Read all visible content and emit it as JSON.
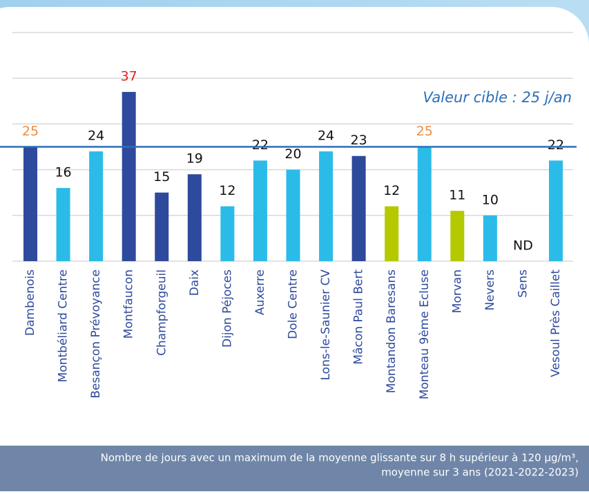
{
  "chart_data": {
    "type": "bar",
    "categories": [
      "Dambenois",
      "Montbéliard Centre",
      "Besançon Prévoyance",
      "Montfaucon",
      "Champforgeuil",
      "Daix",
      "Dijon Péjoces",
      "Auxerre",
      "Dole Centre",
      "Lons-le-Saunier CV",
      "Mâcon Paul Bert",
      "Montandon Baresans",
      "Monteau 9ème Ecluse",
      "Morvan",
      "Nevers",
      "Sens",
      "Vesoul Près Caillet"
    ],
    "values": [
      25,
      16,
      24,
      37,
      15,
      19,
      12,
      22,
      20,
      24,
      23,
      12,
      25,
      11,
      10,
      null,
      22
    ],
    "value_labels": [
      "25",
      "16",
      "24",
      "37",
      "15",
      "19",
      "12",
      "22",
      "20",
      "24",
      "23",
      "12",
      "25",
      "11",
      "10",
      "ND",
      "22"
    ],
    "colors": [
      "#2e4a9c",
      "#2bbbe8",
      "#2bbbe8",
      "#2e4a9c",
      "#2e4a9c",
      "#2e4a9c",
      "#2bbbe8",
      "#2bbbe8",
      "#2bbbe8",
      "#2bbbe8",
      "#2e4a9c",
      "#b5c900",
      "#2bbbe8",
      "#b5c900",
      "#2bbbe8",
      "#2bbbe8",
      "#2bbbe8"
    ],
    "value_label_colors": [
      "#f08a3c",
      "#111111",
      "#111111",
      "#e32020",
      "#111111",
      "#111111",
      "#111111",
      "#111111",
      "#111111",
      "#111111",
      "#111111",
      "#111111",
      "#f08a3c",
      "#111111",
      "#111111",
      "#111111",
      "#111111"
    ],
    "ylim": [
      0,
      50
    ],
    "yticks": [
      0,
      10,
      20,
      30,
      40,
      50
    ],
    "grid": true,
    "target": {
      "value": 25,
      "label": "Valeur cible : 25 j/an",
      "color": "#2a6fb8"
    },
    "note": [
      "Nombre de jours avec un maximum de la moyenne glissante sur 8 h supérieur à 120 µg/m³,",
      "moyenne sur 3 ans (2021-2022-2023)"
    ]
  }
}
